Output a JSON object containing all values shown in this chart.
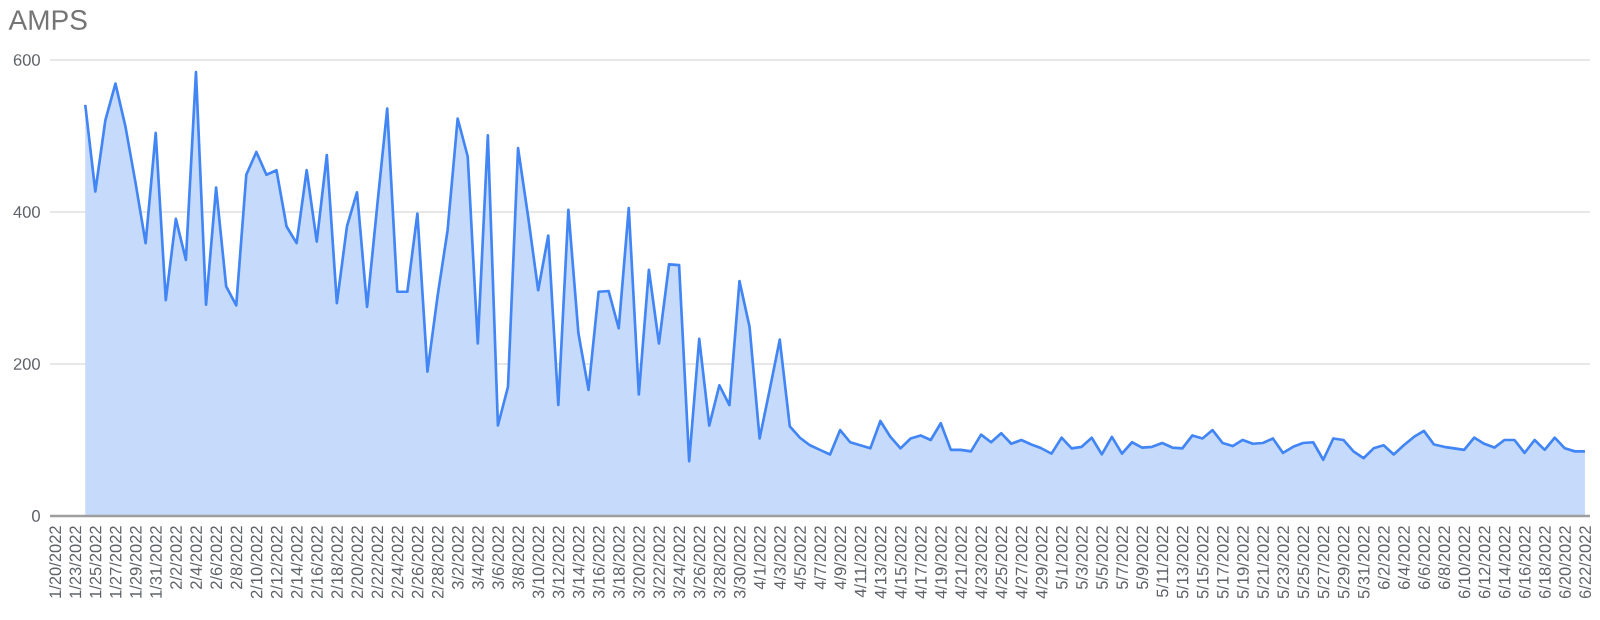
{
  "chart_data": {
    "type": "area",
    "title": "AMPS",
    "color": "#4285f4",
    "grid": "y",
    "ylim": [
      0,
      600
    ],
    "yticks": [
      0,
      200,
      400,
      600
    ],
    "categories": [
      "1/20/2022",
      null,
      "1/23/2022",
      null,
      "1/25/2022",
      null,
      "1/27/2022",
      null,
      "1/29/2022",
      null,
      "1/31/2022",
      null,
      "2/2/2022",
      null,
      "2/4/2022",
      null,
      "2/6/2022",
      null,
      "2/8/2022",
      null,
      "2/10/2022",
      null,
      "2/12/2022",
      null,
      "2/14/2022",
      null,
      "2/16/2022",
      null,
      "2/18/2022",
      null,
      "2/20/2022",
      null,
      "2/22/2022",
      null,
      "2/24/2022",
      null,
      "2/26/2022",
      null,
      "2/28/2022",
      null,
      "3/2/2022",
      null,
      "3/4/2022",
      null,
      "3/6/2022",
      null,
      "3/8/2022",
      null,
      "3/10/2022",
      null,
      "3/12/2022",
      null,
      "3/14/2022",
      null,
      "3/16/2022",
      null,
      "3/18/2022",
      null,
      "3/20/2022",
      null,
      "3/22/2022",
      null,
      "3/24/2022",
      null,
      "3/26/2022",
      null,
      "3/28/2022",
      null,
      "3/30/2022",
      null,
      "4/1/2022",
      null,
      "4/3/2022",
      null,
      "4/5/2022",
      null,
      "4/7/2022",
      null,
      "4/9/2022",
      null,
      "4/11/2022",
      null,
      "4/13/2022",
      null,
      "4/15/2022",
      null,
      "4/17/2022",
      null,
      "4/19/2022",
      null,
      "4/21/2022",
      null,
      "4/23/2022",
      null,
      "4/25/2022",
      null,
      "4/27/2022",
      null,
      "4/29/2022",
      null,
      "5/1/2022",
      null,
      "5/3/2022",
      null,
      "5/5/2022",
      null,
      "5/7/2022",
      null,
      "5/9/2022",
      null,
      "5/11/2022",
      null,
      "5/13/2022",
      null,
      "5/15/2022",
      null,
      "5/17/2022",
      null,
      "5/19/2022",
      null,
      "5/21/2022",
      null,
      "5/23/2022",
      null,
      "5/25/2022",
      null,
      "5/27/2022",
      null,
      "5/29/2022",
      null,
      "5/31/2022",
      null,
      "6/2/2022",
      null,
      "6/4/2022",
      null,
      "6/6/2022",
      null,
      "6/8/2022",
      null,
      "6/10/2022",
      null,
      "6/12/2022",
      null,
      "6/14/2022",
      null,
      "6/16/2022",
      null,
      "6/18/2022",
      null,
      "6/20/2022",
      null,
      "6/22/2022"
    ],
    "values": [
      null,
      null,
      null,
      541,
      427,
      521,
      569,
      512,
      438,
      359,
      504,
      284,
      391,
      337,
      584,
      278,
      432,
      302,
      277,
      449,
      479,
      449,
      455,
      381,
      359,
      455,
      361,
      475,
      280,
      381,
      426,
      275,
      407,
      536,
      295,
      295,
      398,
      190,
      289,
      376,
      523,
      473,
      227,
      501,
      119,
      170,
      484,
      394,
      297,
      369,
      146,
      403,
      240,
      166,
      295,
      296,
      247,
      405,
      160,
      324,
      227,
      331,
      330,
      72,
      233,
      119,
      172,
      146,
      309,
      249,
      102,
      166,
      232,
      118,
      103,
      93,
      87,
      81,
      113,
      97,
      93,
      89,
      125,
      104,
      89,
      102,
      106,
      100,
      122,
      87,
      87,
      85,
      107,
      97,
      109,
      95,
      100,
      94,
      89,
      82,
      103,
      89,
      91,
      103,
      81,
      104,
      82,
      97,
      90,
      91,
      96,
      90,
      89,
      106,
      102,
      113,
      96,
      92,
      100,
      95,
      96,
      102,
      83,
      91,
      96,
      97,
      74,
      102,
      100,
      85,
      76,
      89,
      93,
      81,
      93,
      104,
      112,
      94,
      91,
      89,
      87,
      103,
      95,
      90,
      100,
      100,
      83,
      100,
      87,
      103,
      89,
      85,
      85
    ]
  }
}
